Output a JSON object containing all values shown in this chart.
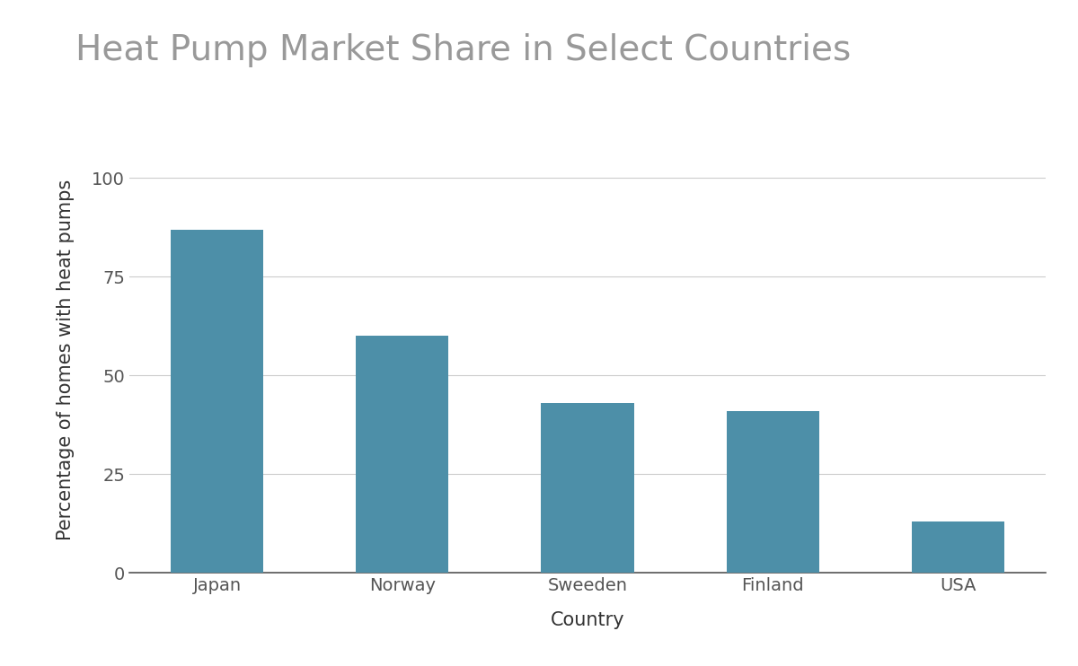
{
  "title": "Heat Pump Market Share in Select Countries",
  "categories": [
    "Japan",
    "Norway",
    "Sweeden",
    "Finland",
    "USA"
  ],
  "values": [
    87,
    60,
    43,
    41,
    13
  ],
  "bar_color": "#4d8fa8",
  "xlabel": "Country",
  "ylabel": "Percentage of homes with heat pumps",
  "ylim": [
    0,
    108
  ],
  "yticks": [
    0,
    25,
    50,
    75,
    100
  ],
  "background_color": "#ffffff",
  "title_color": "#999999",
  "axis_label_color": "#333333",
  "tick_label_color": "#555555",
  "title_fontsize": 28,
  "axis_label_fontsize": 15,
  "tick_fontsize": 14,
  "bar_width": 0.5
}
